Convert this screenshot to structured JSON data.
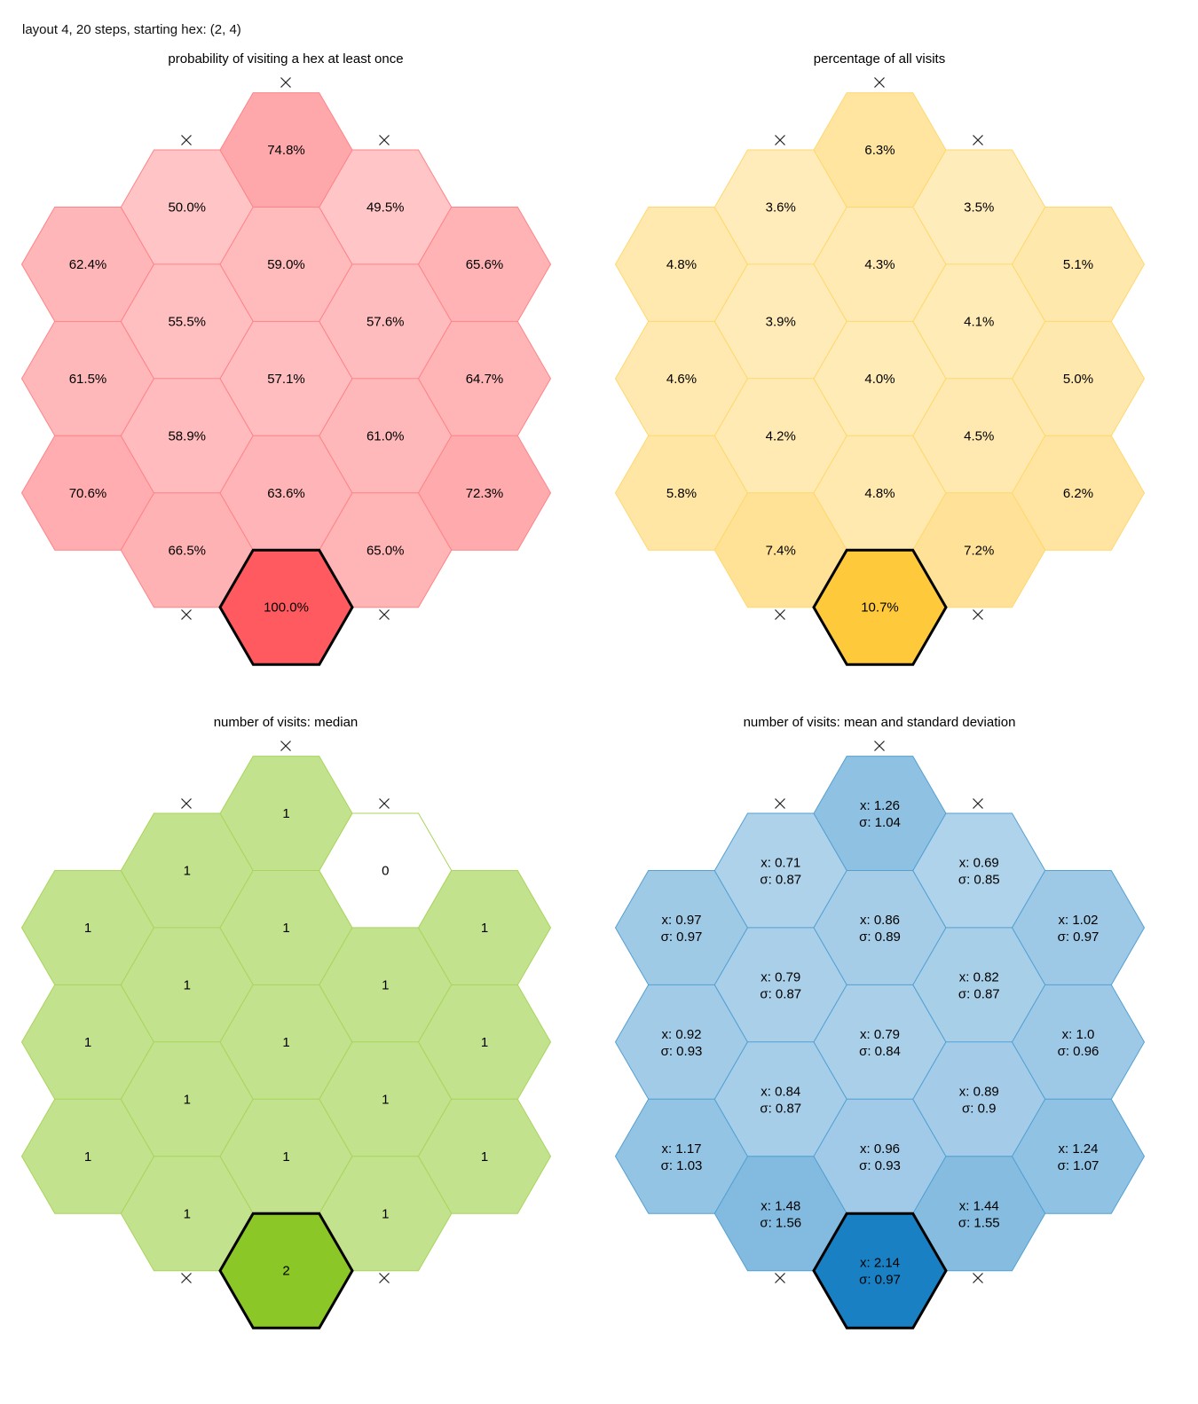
{
  "header": "layout 4, 20 steps, starting hex: (2, 4)",
  "chart_data": [
    {
      "type": "heatmap",
      "subtype": "hex",
      "title": "probability of visiting a hex at least once",
      "color": "#ff5a5f",
      "values": [
        [
          62.4,
          61.5,
          70.6,
          null
        ],
        [
          50.0,
          55.5,
          58.9,
          66.5
        ],
        [
          74.8,
          59.0,
          57.1,
          63.6,
          100.0
        ],
        [
          49.5,
          57.6,
          61.0,
          65.0
        ],
        [
          65.6,
          64.7,
          72.3,
          null
        ]
      ],
      "labels": [
        [
          "62.4%",
          "61.5%",
          "70.6%",
          ""
        ],
        [
          "50.0%",
          "55.5%",
          "58.9%",
          "66.5%"
        ],
        [
          "74.8%",
          "59.0%",
          "57.1%",
          "63.6%",
          "100.0%"
        ],
        [
          "49.5%",
          "57.6%",
          "61.0%",
          "65.0%"
        ],
        [
          "65.6%",
          "64.7%",
          "72.3%",
          ""
        ]
      ],
      "start": [
        2,
        4
      ],
      "x_marks": [
        "×",
        "×",
        "×",
        "×",
        "×"
      ]
    },
    {
      "type": "heatmap",
      "subtype": "hex",
      "title": "percentage of all visits",
      "color": "#ffc93c",
      "values": [
        [
          4.8,
          4.6,
          5.8,
          null
        ],
        [
          3.6,
          3.9,
          4.2,
          7.4
        ],
        [
          6.3,
          4.3,
          4.0,
          4.8,
          10.7
        ],
        [
          3.5,
          4.1,
          4.5,
          7.2
        ],
        [
          5.1,
          5.0,
          6.2,
          null
        ]
      ],
      "labels": [
        [
          "4.8%",
          "4.6%",
          "5.8%",
          ""
        ],
        [
          "3.6%",
          "3.9%",
          "4.2%",
          "7.4%"
        ],
        [
          "6.3%",
          "4.3%",
          "4.0%",
          "4.8%",
          "10.7%"
        ],
        [
          "3.5%",
          "4.1%",
          "4.5%",
          "7.2%"
        ],
        [
          "5.1%",
          "5.0%",
          "6.2%",
          ""
        ]
      ],
      "start": [
        2,
        4
      ],
      "x_marks": [
        "×",
        "×",
        "×",
        "×",
        "×"
      ]
    },
    {
      "type": "heatmap",
      "subtype": "hex",
      "title": "number of visits: median",
      "color": "#8bc726",
      "values": [
        [
          1,
          1,
          1,
          null
        ],
        [
          1,
          1,
          1,
          1
        ],
        [
          1,
          1,
          1,
          1,
          2
        ],
        [
          0,
          1,
          1,
          1
        ],
        [
          1,
          1,
          1,
          null
        ]
      ],
      "labels": [
        [
          "1",
          "1",
          "1",
          ""
        ],
        [
          "1",
          "1",
          "1",
          "1"
        ],
        [
          "1",
          "1",
          "1",
          "1",
          "2"
        ],
        [
          "0",
          "1",
          "1",
          "1"
        ],
        [
          "1",
          "1",
          "1",
          ""
        ]
      ],
      "start": [
        2,
        4
      ],
      "x_marks": [
        "×",
        "×",
        "×",
        "×",
        "×"
      ]
    },
    {
      "type": "heatmap",
      "subtype": "hex",
      "title": "number of visits: mean and standard deviation",
      "color": "#1a80c4",
      "values": [
        [
          0.97,
          0.92,
          1.17,
          null
        ],
        [
          0.71,
          0.79,
          0.84,
          1.48
        ],
        [
          1.26,
          0.86,
          0.79,
          0.96,
          2.14
        ],
        [
          0.69,
          0.82,
          0.89,
          1.44
        ],
        [
          1.02,
          1.0,
          1.24,
          null
        ]
      ],
      "std": [
        [
          0.97,
          0.93,
          1.03,
          null
        ],
        [
          0.87,
          0.87,
          0.87,
          1.56
        ],
        [
          1.04,
          0.89,
          0.84,
          0.93,
          0.97
        ],
        [
          0.85,
          0.87,
          0.9,
          1.55
        ],
        [
          0.97,
          0.96,
          1.07,
          null
        ]
      ],
      "labels": [
        [
          "x: 0.97",
          "x: 0.92",
          "x: 1.17",
          ""
        ],
        [
          "x: 0.71",
          "x: 0.79",
          "x: 0.84",
          "x: 1.48"
        ],
        [
          "x: 1.26",
          "x: 0.86",
          "x: 0.79",
          "x: 0.96",
          "x: 2.14"
        ],
        [
          "x: 0.69",
          "x: 0.82",
          "x: 0.89",
          "x: 1.44"
        ],
        [
          "x: 1.02",
          "x: 1.0",
          "x: 1.24",
          ""
        ]
      ],
      "labels2": [
        [
          "σ: 0.97",
          "σ: 0.93",
          "σ: 1.03",
          ""
        ],
        [
          "σ: 0.87",
          "σ: 0.87",
          "σ: 0.87",
          "σ: 1.56"
        ],
        [
          "σ: 1.04",
          "σ: 0.89",
          "σ: 0.84",
          "σ: 0.93",
          "σ: 0.97"
        ],
        [
          "σ: 0.85",
          "σ: 0.87",
          "σ: 0.9",
          "σ: 1.55"
        ],
        [
          "σ: 0.97",
          "σ: 0.96",
          "σ: 1.07",
          ""
        ]
      ],
      "start": [
        2,
        4
      ],
      "x_marks": [
        "×",
        "×",
        "×",
        "×",
        "×"
      ]
    }
  ]
}
